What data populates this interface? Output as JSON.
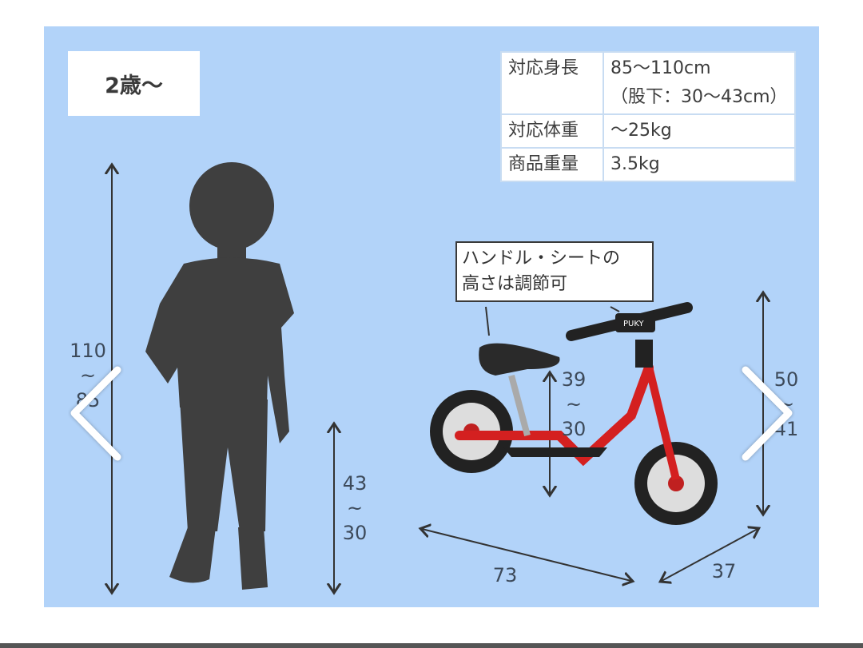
{
  "age_label": "2歳～",
  "spec_table": [
    {
      "key": "対応身長",
      "value": "85～110cm",
      "value2": "（股下：30～43cm）"
    },
    {
      "key": "対応体重",
      "value": "～25kg"
    },
    {
      "key": "商品重量",
      "value": "3.5kg"
    }
  ],
  "callout": {
    "line1": "ハンドル・シートの",
    "line2": "高さは調節可"
  },
  "dimensions": {
    "child_height": {
      "max": "110",
      "sep": "~",
      "min": "85"
    },
    "inseam": {
      "max": "43",
      "sep": "~",
      "min": "30"
    },
    "seat_height": {
      "max": "39",
      "sep": "~",
      "min": "30"
    },
    "handle_height": {
      "max": "50",
      "sep": "~",
      "min": "41"
    },
    "length": "73",
    "width": "37"
  },
  "brand_logo": "PUKY",
  "colors": {
    "panel": "#b2d3f9",
    "bike_red": "#d42020",
    "silhouette": "#3f3f3f"
  },
  "navigation": {
    "prev": "chevron-left-icon",
    "next": "chevron-right-icon"
  }
}
